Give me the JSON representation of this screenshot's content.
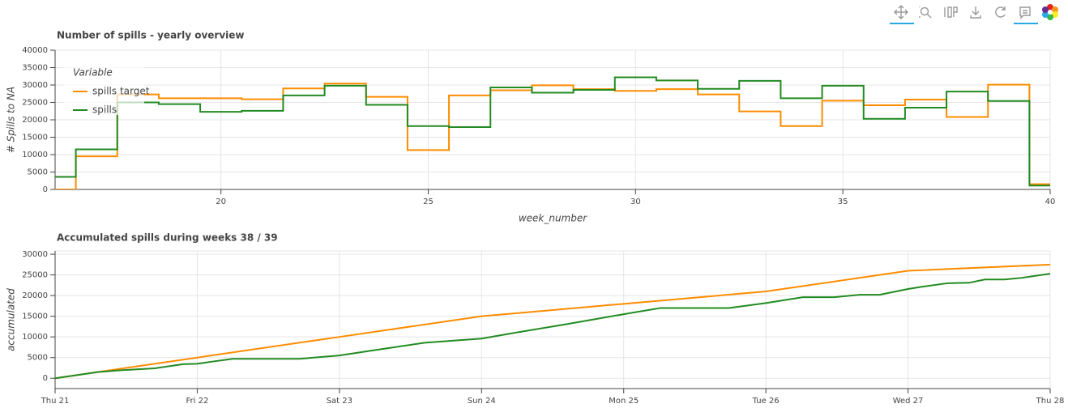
{
  "chart_data": [
    {
      "type": "step",
      "title": "Number of spills - yearly overview",
      "x_label": "week_number",
      "y_label": "# Spills to NA",
      "x": [
        16,
        17,
        18,
        19,
        20,
        21,
        22,
        23,
        24,
        25,
        26,
        27,
        28,
        29,
        30,
        31,
        32,
        33,
        34,
        35,
        36,
        37,
        38,
        39,
        40
      ],
      "series": [
        {
          "name": "spills target",
          "color": "#ff8c00",
          "values": [
            0,
            9500,
            27300,
            26200,
            26200,
            25900,
            29000,
            30400,
            26600,
            11300,
            27000,
            28500,
            29900,
            28800,
            28300,
            28800,
            27300,
            22400,
            18200,
            25500,
            24200,
            25800,
            20800,
            30100,
            1500
          ]
        },
        {
          "name": "spills",
          "color": "#228b22",
          "values": [
            3600,
            11500,
            25000,
            24500,
            22300,
            22600,
            27000,
            29800,
            24300,
            18200,
            17900,
            29300,
            27800,
            28600,
            32200,
            31300,
            28900,
            31200,
            26200,
            29800,
            20300,
            23500,
            28100,
            25400,
            1100
          ]
        }
      ],
      "xlim": [
        16,
        40
      ],
      "xticks": [
        20,
        25,
        30,
        35,
        40
      ],
      "ylim": [
        0,
        40000
      ],
      "yticks": [
        0,
        5000,
        10000,
        15000,
        20000,
        25000,
        30000,
        35000,
        40000
      ],
      "grid": true,
      "legend_title": "Variable",
      "legend_location": "top_left"
    },
    {
      "type": "line",
      "title": "Accumulated spills during weeks 38 / 39",
      "y_label": "accumulated",
      "series": [
        {
          "color": "#ff8c00",
          "x": [
            0,
            1,
            2,
            3,
            4,
            5,
            6,
            7
          ],
          "values": [
            0,
            5000,
            10000,
            15000,
            18000,
            21000,
            26000,
            27500
          ]
        },
        {
          "color": "#228b22",
          "x": [
            0,
            0.3,
            0.45,
            0.7,
            0.9,
            1.0,
            1.1,
            1.25,
            1.72,
            2.0,
            2.23,
            2.6,
            3.0,
            3.2,
            3.6,
            4.0,
            4.26,
            4.74,
            5.0,
            5.26,
            5.48,
            5.66,
            5.8,
            6.0,
            6.11,
            6.28,
            6.43,
            6.54,
            6.68,
            6.8,
            7.0
          ],
          "values": [
            0,
            1500,
            1900,
            2400,
            3400,
            3500,
            4000,
            4700,
            4700,
            5500,
            6700,
            8600,
            9600,
            10800,
            13100,
            15500,
            17000,
            17000,
            18200,
            19600,
            19600,
            20200,
            20200,
            21600,
            22200,
            23000,
            23100,
            23900,
            23900,
            24300,
            25300
          ]
        }
      ],
      "xlim": [
        0,
        7
      ],
      "xticks": [
        {
          "value": 0,
          "label": "Thu 21"
        },
        {
          "value": 1,
          "label": "Fri 22"
        },
        {
          "value": 2,
          "label": "Sat 23"
        },
        {
          "value": 3,
          "label": "Sun 24"
        },
        {
          "value": 4,
          "label": "Mon 25"
        },
        {
          "value": 5,
          "label": "Tue 26"
        },
        {
          "value": 6,
          "label": "Wed 27"
        },
        {
          "value": 7,
          "label": "Thu 28"
        }
      ],
      "ylim": [
        -2500,
        30800
      ],
      "yticks": [
        0,
        5000,
        10000,
        15000,
        20000,
        25000,
        30000
      ],
      "grid": true
    }
  ]
}
